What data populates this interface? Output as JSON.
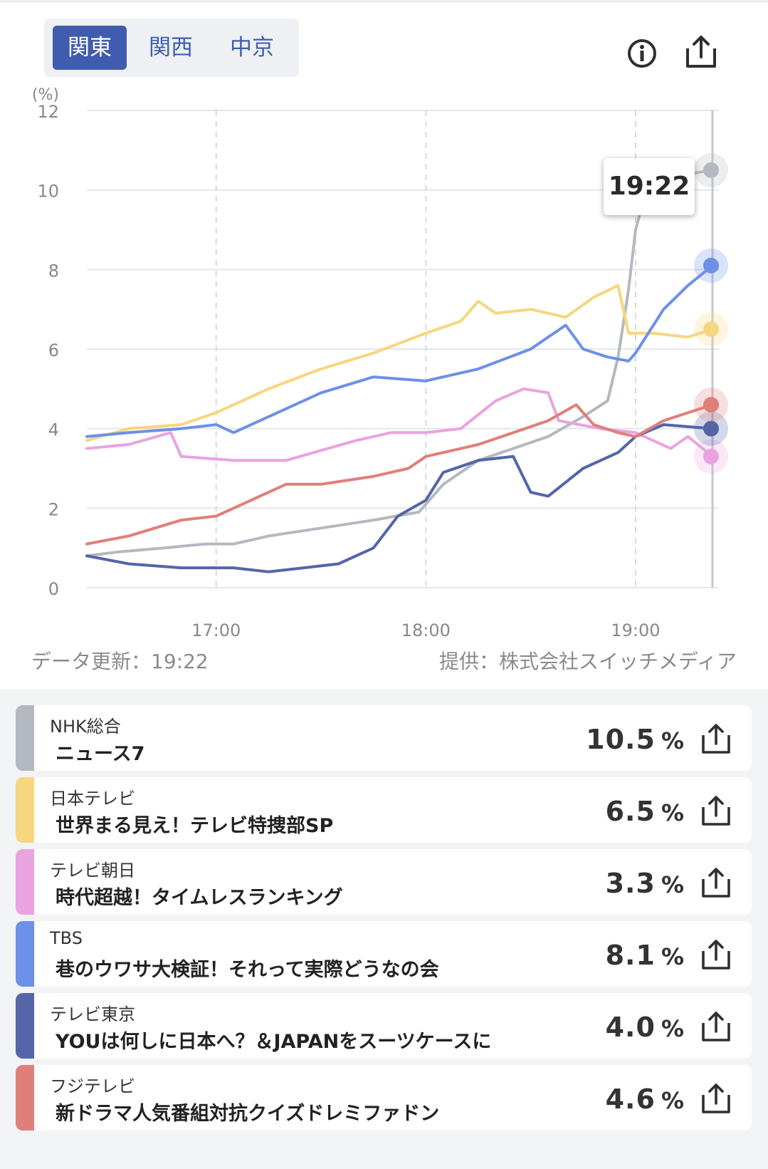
{
  "regions": [
    {
      "label": "関東",
      "active": true
    },
    {
      "label": "関西",
      "active": false
    },
    {
      "label": "中京",
      "active": false
    }
  ],
  "header": {
    "info_icon": "info-circle-icon",
    "share_icon": "share-upload-icon"
  },
  "chart_data": {
    "type": "line",
    "ylabel": "(%)",
    "ylim": [
      0,
      12
    ],
    "yticks": [
      "0",
      "2",
      "4",
      "6",
      "8",
      "10",
      "12"
    ],
    "xlim": [
      "16:23",
      "19:22"
    ],
    "xticks": [
      "17:00",
      "18:00",
      "19:00"
    ],
    "cursor_label": "19:22",
    "series": [
      {
        "name": "NHK総合",
        "color": "#b4b8c0",
        "x": [
          "16:23",
          "16:32",
          "16:45",
          "16:57",
          "17:05",
          "17:15",
          "17:30",
          "17:45",
          "17:58",
          "18:05",
          "18:15",
          "18:25",
          "18:35",
          "18:45",
          "18:52",
          "18:55",
          "18:58",
          "19:00",
          "19:04",
          "19:08",
          "19:15",
          "19:22"
        ],
        "y": [
          0.8,
          0.9,
          1.0,
          1.1,
          1.1,
          1.3,
          1.5,
          1.7,
          1.9,
          2.6,
          3.2,
          3.5,
          3.8,
          4.3,
          4.7,
          5.8,
          7.5,
          9.0,
          10.3,
          10.6,
          10.4,
          10.5
        ]
      },
      {
        "name": "日本テレビ",
        "color": "#f6d67e",
        "x": [
          "16:23",
          "16:35",
          "16:50",
          "17:00",
          "17:15",
          "17:30",
          "17:45",
          "18:00",
          "18:10",
          "18:15",
          "18:20",
          "18:30",
          "18:40",
          "18:48",
          "18:55",
          "18:58",
          "19:05",
          "19:15",
          "19:22"
        ],
        "y": [
          3.7,
          4.0,
          4.1,
          4.4,
          5.0,
          5.5,
          5.9,
          6.4,
          6.7,
          7.2,
          6.9,
          7.0,
          6.8,
          7.3,
          7.6,
          6.4,
          6.4,
          6.3,
          6.5
        ]
      },
      {
        "name": "テレビ朝日",
        "color": "#e9a3e0",
        "x": [
          "16:23",
          "16:35",
          "16:47",
          "16:50",
          "17:05",
          "17:20",
          "17:40",
          "17:50",
          "18:00",
          "18:10",
          "18:20",
          "18:28",
          "18:35",
          "18:38",
          "18:50",
          "19:00",
          "19:10",
          "19:15",
          "19:22"
        ],
        "y": [
          3.5,
          3.6,
          3.9,
          3.3,
          3.2,
          3.2,
          3.7,
          3.9,
          3.9,
          4.0,
          4.7,
          5.0,
          4.9,
          4.2,
          4.0,
          3.9,
          3.5,
          3.8,
          3.3
        ]
      },
      {
        "name": "TBS",
        "color": "#6d90e8",
        "x": [
          "16:23",
          "16:35",
          "16:50",
          "17:00",
          "17:05",
          "17:15",
          "17:30",
          "17:45",
          "18:00",
          "18:15",
          "18:30",
          "18:40",
          "18:45",
          "18:52",
          "18:58",
          "19:00",
          "19:08",
          "19:15",
          "19:22"
        ],
        "y": [
          3.8,
          3.9,
          4.0,
          4.1,
          3.9,
          4.3,
          4.9,
          5.3,
          5.2,
          5.5,
          6.0,
          6.6,
          6.0,
          5.8,
          5.7,
          5.9,
          7.0,
          7.6,
          8.1
        ]
      },
      {
        "name": "テレビ東京",
        "color": "#5465a8",
        "x": [
          "16:23",
          "16:35",
          "16:50",
          "17:05",
          "17:15",
          "17:25",
          "17:35",
          "17:45",
          "17:52",
          "18:00",
          "18:05",
          "18:15",
          "18:25",
          "18:30",
          "18:35",
          "18:45",
          "18:55",
          "19:00",
          "19:08",
          "19:22"
        ],
        "y": [
          0.8,
          0.6,
          0.5,
          0.5,
          0.4,
          0.5,
          0.6,
          1.0,
          1.8,
          2.2,
          2.9,
          3.2,
          3.3,
          2.4,
          2.3,
          3.0,
          3.4,
          3.8,
          4.1,
          4.0
        ]
      },
      {
        "name": "フジテレビ",
        "color": "#e07f7a",
        "x": [
          "16:23",
          "16:35",
          "16:50",
          "17:00",
          "17:10",
          "17:20",
          "17:30",
          "17:45",
          "17:55",
          "18:00",
          "18:15",
          "18:25",
          "18:35",
          "18:43",
          "18:48",
          "18:55",
          "19:00",
          "19:08",
          "19:22"
        ],
        "y": [
          1.1,
          1.3,
          1.7,
          1.8,
          2.2,
          2.6,
          2.6,
          2.8,
          3.0,
          3.3,
          3.6,
          3.9,
          4.2,
          4.6,
          4.1,
          3.9,
          3.8,
          4.2,
          4.6
        ]
      }
    ]
  },
  "update_text": "データ更新：19:22",
  "provider_text": "提供：株式会社スイッチメディア",
  "programs": [
    {
      "station": "NHK総合",
      "title": "ニュース7",
      "rating": "10.5",
      "unit": "%",
      "color": "#b4b8c0"
    },
    {
      "station": "日本テレビ",
      "title": "世界まる見え！テレビ特捜部SP",
      "rating": "6.5",
      "unit": "%",
      "color": "#f6d67e"
    },
    {
      "station": "テレビ朝日",
      "title": "時代超越！タイムレスランキング",
      "rating": "3.3",
      "unit": "%",
      "color": "#e9a3e0"
    },
    {
      "station": "TBS",
      "title": "巷のウワサ大検証！それって実際どうなの会",
      "rating": "8.1",
      "unit": "%",
      "color": "#6d90e8"
    },
    {
      "station": "テレビ東京",
      "title": "YOUは何しに日本へ？＆JAPANをスーツケースに",
      "rating": "4.0",
      "unit": "%",
      "color": "#5465a8"
    },
    {
      "station": "フジテレビ",
      "title": "新ドラマ人気番組対抗クイズドレミファドン",
      "rating": "4.6",
      "unit": "%",
      "color": "#e07f7a"
    }
  ]
}
